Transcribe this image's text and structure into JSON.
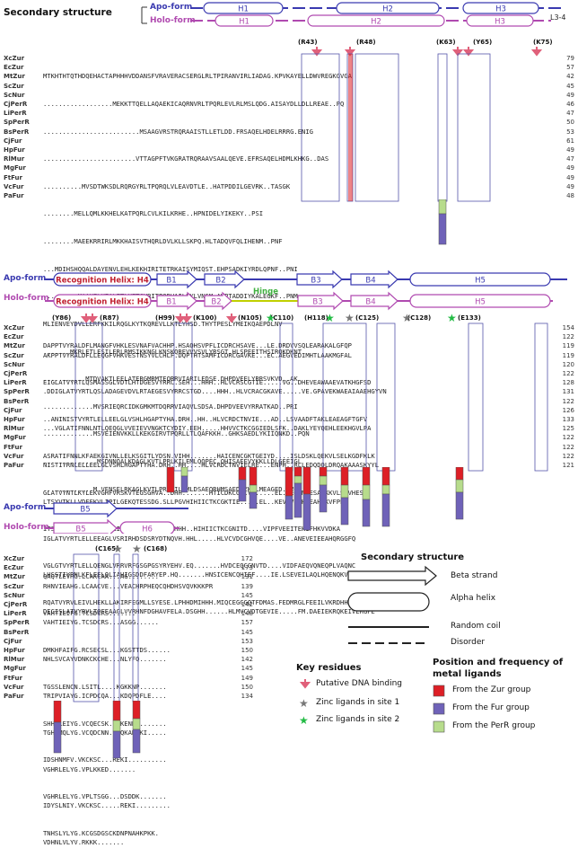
{
  "header": {
    "secondary_structure": "Secondary structure",
    "apo_form": "Apo-form",
    "holo_form": "Holo-form"
  },
  "block1": {
    "ss_apo": [
      "H1",
      "H2",
      "H3",
      "L3-4"
    ],
    "ss_holo": [
      "H1",
      "H2",
      "H3"
    ],
    "keys": [
      "(R43)",
      "(R48)",
      "(K63)",
      "(Y65)",
      "(K75)"
    ],
    "names": [
      "XcZur",
      "EcZur",
      "MtZur",
      "ScZur",
      "ScNur",
      "CjPerR",
      "LiPerR",
      "SpPerR",
      "BsPerR",
      "CjFur",
      "HpFur",
      "RlMur",
      "MgFur",
      "FtFur",
      "VcFur",
      "PaFur"
    ],
    "seqs": [
      "MTKHTHTQTHDQEHACTAPHHHVDDANSFVRAVERACSERGLRLTPIRANVIRLIADAG.KPVKAYELLDWVREGKGVGA",
      "..................MEKKTTQELLAQAEKICAQRNVRLTPQRLEVLRLMSLQDG.AISAYDLLDLLREAE..PQ",
      ".........................MSAAGVRSTRQRAAISTLLETLDD.FRSAQELHDELRRRG.ENIG",
      "........................VTTAGPFTVKGRATRQRAAVSAALQEVE.EFRSAQELHDMLKHKG..DAS",
      "..........MVSDTWKSDLRQRGYRLTPQRQLVLEAVDTLE..HATPDDILGEVRK..TASGK",
      "........MELLQMLKKHELKATPQRLCVLKILKRHE..HPNIDELYIKEKY..PSI",
      "........MAEEKRRIRLMKKHAISVTHQRLDVLKLLSKPQ.HLTADQVFQLIHENM..PNF",
      "...MDIHSHQQALDAYENVLEHLKEKHIRITETRKAISYMIQST.EHPSADKIYRDLQPNF..PNI",
      ".........MAAHELKEALETLKETGVRITPQRHAILEYLVNSM.AHPTADDIYKALEGKF..PNM",
      "MLIENVEYDVLLERFKKILRQGLKYTKQREVLLKTLYHSD.THYTPESLYMEIKQAEPDLNV",
      ".......MKRLETLESILERLRMSIKKNGLKNSKQREVVVSVLYRSGT.HLSPEEITHSIRQKDKNT",
      "...........MTDVAKTLEELATERGMRMTEQRRVIARILEDSE.DHPDVEELYRRSVKVD..AK",
      ".............MVSRIEQRCIDKGMKMTDQRRVIAQVLSDSA.DHPDVEEVYRRATKAD..PRI",
      ".............MSVEIENVKKLLKEKGIRVTPQRLLTLQAFKKH..GHKSAEDLYKIIQNKD..PQN",
      "..............MSDNNQALKDAGLKVTLPRLKILEMLQQPEC.QHISAEEVYKKLLDLGEEIGL",
      ".............M.VENSELRKAGLKVTLPRVKILQMLDSAEQRHMSAEDVYKALMEAGED..VGL"
    ],
    "nums": [
      "79",
      "57",
      "42",
      "45",
      "49",
      "46",
      "47",
      "50",
      "53",
      "61",
      "49",
      "47",
      "49",
      "49",
      "49",
      "48"
    ]
  },
  "block2": {
    "ss_apo": [
      "Recognition Helix: H4",
      "B1",
      "B2",
      "B3",
      "B4",
      "H5"
    ],
    "ss_holo": [
      "Recognition Helix: H4",
      "B1",
      "B2",
      "Hinge",
      "B3",
      "B4",
      "H5"
    ],
    "keys": [
      "(Y86)",
      "(R87)",
      "(H99)",
      "(K100)",
      "(N105)",
      "(C110)",
      "(H118)",
      "(C125)",
      "(C128)",
      "(E133)"
    ],
    "seqs": [
      "DAPPTVYRALDFLMANGFVHKLESVNAFVACHHP.HSAQHSVPFLICDRCHSAVE...LE.DRDVVSQLEARAKALGFQP",
      "AKPPTVYRALDFLLEQGFVHKVESTNSYVLCHLF.DQPTHTSAMFICDRCGAVKE...EC.AEGVEDIMHTLAAKMGFAL",
      "EIGLATVYRTLQSMASSGLVDTLHTDGESVYRRC.SEH...HHH..HLVCRSCGTIE.....VG..DHEVEAWAAEVATKHGFSD",
      ".DDIGLATVYRTLQSLADAGEVDVLRTAEGESVYRRCSTGD....HHH..HLVCRACGKAVE.....VE.GPAVEKWAEAIAAEHGYVN",
      "..ANINISTVYRTLELLEELGLVSHLHGAPTYHA.DRH..HH..HLVCRDCTNVIE...AD..LSVAADFTAKLEAEAGFTGFV",
      "...VGLATIFNNLNTLQEQGLVVEIEVVNGKTCYDIY.EEH.....HHVVCTKCGGIEDLSFK..DAKLYEYQEHLEEKHGVLPA",
      "ASRATIFNNLKFAEKGIVNLLELKSGITLYDSN.VIHH.......HAICENCGKTGEIYD....ISLDSKLQEKVLSELKGDFKLK",
      "NISTIYRNLELLEELGLVSHLHGAPTYHA.DRH..HH....HLVCRDCTNVIELRE...ENPH..RLLEDQDQLDRQAKAAASKYYL",
      "GLATVYNTLKYLEKVGHFVRSKVTEGSGHVA..DHH.......HTICDKCGNIVE.....EL.SEGEMHESALKKVLSSVHESF",
      "LTSYVTKLLVDFEKVLIPILGEKQTESSDG.SLLPGVHIHIICTKCGKTIE.....EL..KEVDVLAHLEAHHKVFPEH",
      "ITSVYRVLKELVRDGFVELIERASSKIDKSEEN.HHH..HIHIICTKCGNITD....VIPFVEEITEHIFHKVVDKA",
      "IGLATVYRTLELLEEAGLVSRIRHDSDSRYDTNQVH.HHL.....HLVCVDCGHVQE....VE..ANEVEIEEAHQRGGFQ",
      "VGLGTVYRTLELLQENGLVRRVRFGSGPGSYRYEHV.EQ.......HVDCEQCGNVTD....VIDFAEQVQNEQPLVAQNC",
      "LHSSTIYRNLKFLEELQLIAHIGSDDFARYEP.HQ.......HNSICENCQHIEF....IE.LSEVEILAQLHQENQKVPEH",
      "RQATVYRVLEIVLHEKLLAKIRFEGMLLSYESE.LPHHDMIHHH.MIQCEGCGQTFDMAS.FEDMRGLFEEILVKRDHHGSMK",
      "DEGISLATVYRVLTQFEAAGLVVRHNFDGHAVFELA.DSGHH......HLMVCVDTGEVIE.....FM.DAEIEKRQKEIVERGFE"
    ],
    "nums": [
      "154",
      "122",
      "119",
      "119",
      "120",
      "122",
      "128",
      "131",
      "122",
      "126",
      "133",
      "125",
      "122",
      "122",
      "122",
      "121"
    ]
  },
  "block3": {
    "ss_apo": [
      "B5"
    ],
    "ss_holo": [
      "B5",
      "H6"
    ],
    "keys": [
      "(C165)",
      "(C168)"
    ],
    "seqs": [
      "QAQTLEVHG.LCAKCAA...AG........",
      "RHNVIEAHG.LCAACVE...VEACHRPHEQCQHDHSVQVKKKPR",
      "VAHTIEIFG.TCSDCRS.......",
      "VAHTIEIYG.TCSDCRS...ASGG......",
      "DMKHFAIFG.RCSECSL...KGSTTDS......",
      "NHLSVCAYVDNKCKCHE...NLYFQ.......",
      "TGSSLENCN.LSITL....KGKKNP.......",
      "TRIPVIAYG.ICPDCQA...KDQPDFLE....",
      "SHHRLEIYG.VCQECSK...KENH........",
      "TGHLMQLYG.VCQDCNN...QKAKVKI.....",
      "IDSHNMFV.VKCKSC...REKI..........",
      "VGHRLELYG.VPLKKED.......",
      "VGHRLELYG.VPLTSGG...DSDDK.......",
      "IDYSLNIY.VKCKSC.....REKI.........",
      "TNHSLYLYG.KCGSDGSCKDNPNAHKPKK.",
      "VDHNLVLYV.RKKK.......          "
    ],
    "nums": [
      "172",
      "173",
      "131",
      "139",
      "145",
      "142",
      "148",
      "157",
      "145",
      "153",
      "150",
      "142",
      "145",
      "149",
      "150",
      "134"
    ]
  },
  "legend": {
    "secondary_structure": "Secondary structure",
    "beta": "Beta strand",
    "alpha": "Alpha helix",
    "coil": "Random coil",
    "disorder": "Disorder",
    "key_residues": "Key residues",
    "dna": "Putative DNA binding",
    "zinc1": "Zinc ligands in site 1",
    "zinc2": "Zinc ligands in site 2",
    "metal_head1": "Position and frequency of",
    "metal_head2": "metal ligands",
    "zur": "From the Zur group",
    "fur": "From the Fur group",
    "perr": "From the PerR group"
  },
  "colors": {
    "apo": "#3a3ab0",
    "holo": "#b04ab0",
    "dna": "#e0607a",
    "zinc1": "#777777",
    "zinc2": "#22bb44",
    "zur": "#dd1f26",
    "fur": "#6f62b8",
    "perr": "#b7dc8c",
    "hinge": "#40b040"
  }
}
